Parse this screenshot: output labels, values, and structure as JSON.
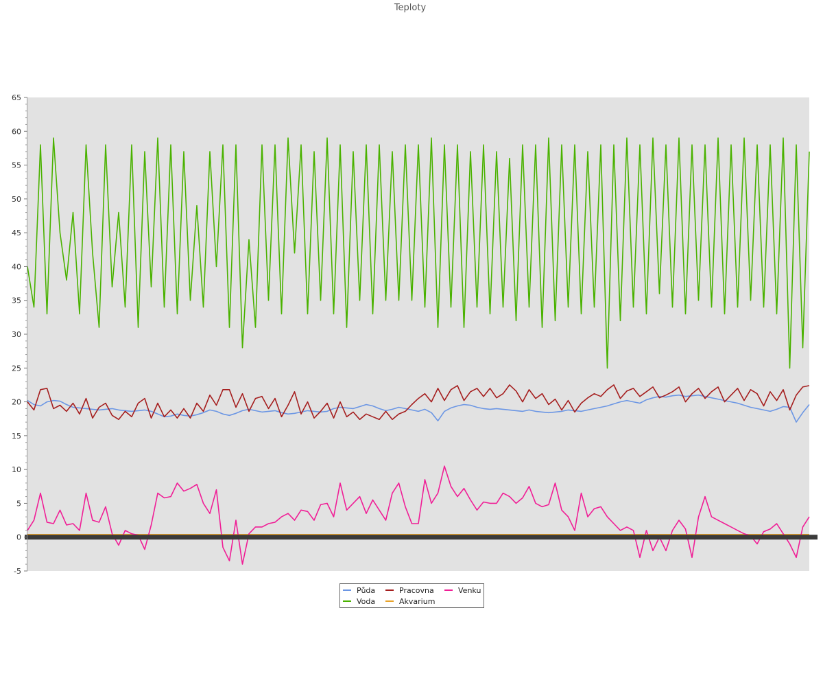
{
  "chart_data": {
    "type": "line",
    "title": "Teploty",
    "xlabel": "",
    "ylabel": "",
    "ylim": [
      -5,
      65
    ],
    "yticks": [
      "-5",
      "0",
      "5",
      "10",
      "15",
      "20",
      "25",
      "30",
      "35",
      "40",
      "45",
      "50",
      "55",
      "60",
      "65"
    ],
    "grid": false,
    "legend_position": "bottom-center",
    "plot_background": "#e2e2e2",
    "zero_line_color": "#3a3a3a",
    "x": [
      0,
      1,
      2,
      3,
      4,
      5,
      6,
      7,
      8,
      9,
      10,
      11,
      12,
      13,
      14,
      15,
      16,
      17,
      18,
      19,
      20,
      21,
      22,
      23,
      24,
      25,
      26,
      27,
      28,
      29,
      30,
      31,
      32,
      33,
      34,
      35,
      36,
      37,
      38,
      39,
      40,
      41,
      42,
      43,
      44,
      45,
      46,
      47,
      48,
      49,
      50,
      51,
      52,
      53,
      54,
      55,
      56,
      57,
      58,
      59,
      60,
      61,
      62,
      63,
      64,
      65,
      66,
      67,
      68,
      69,
      70,
      71,
      72,
      73,
      74,
      75,
      76,
      77,
      78,
      79,
      80,
      81,
      82,
      83,
      84,
      85,
      86,
      87,
      88,
      89,
      90,
      91,
      92,
      93,
      94,
      95,
      96,
      97,
      98,
      99,
      100,
      101,
      102,
      103,
      104,
      105,
      106,
      107,
      108,
      109,
      110,
      111,
      112,
      113,
      114,
      115,
      116,
      117,
      118,
      119,
      120
    ],
    "series": [
      {
        "name": "Půda",
        "color": "#6b96e4",
        "values": [
          20.2,
          19.6,
          19.4,
          20.0,
          20.2,
          20.1,
          19.6,
          19.2,
          19.1,
          19.0,
          18.9,
          18.8,
          18.9,
          19.0,
          18.8,
          18.7,
          18.6,
          18.7,
          18.8,
          18.6,
          18.2,
          17.8,
          17.9,
          18.2,
          18.0,
          17.9,
          18.1,
          18.4,
          18.8,
          18.6,
          18.2,
          18.0,
          18.3,
          18.7,
          18.9,
          18.7,
          18.5,
          18.6,
          18.7,
          18.4,
          18.2,
          18.3,
          18.5,
          18.7,
          18.6,
          18.5,
          18.6,
          19.0,
          19.2,
          19.1,
          19.0,
          19.3,
          19.6,
          19.4,
          19.0,
          18.7,
          18.9,
          19.2,
          19.0,
          18.8,
          18.6,
          18.9,
          18.4,
          17.2,
          18.6,
          19.1,
          19.4,
          19.6,
          19.5,
          19.2,
          19.0,
          18.9,
          19.0,
          18.9,
          18.8,
          18.7,
          18.6,
          18.8,
          18.6,
          18.5,
          18.4,
          18.5,
          18.6,
          18.8,
          18.7,
          18.6,
          18.8,
          19.0,
          19.2,
          19.4,
          19.7,
          20.0,
          20.2,
          20.0,
          19.8,
          20.3,
          20.6,
          20.8,
          20.7,
          20.9,
          21.0,
          20.8,
          20.9,
          21.0,
          20.8,
          20.6,
          20.4,
          20.2,
          20.0,
          19.8,
          19.5,
          19.2,
          19.0,
          18.8,
          18.6,
          18.9,
          19.3,
          19.2,
          17.0,
          18.4,
          19.6
        ]
      },
      {
        "name": "Voda",
        "color": "#4ab200",
        "values": [
          40,
          34,
          58,
          33,
          59,
          45,
          38,
          48,
          33,
          58,
          42,
          31,
          58,
          37,
          48,
          34,
          58,
          31,
          57,
          37,
          59,
          34,
          58,
          33,
          57,
          35,
          49,
          34,
          57,
          40,
          58,
          31,
          58,
          28,
          44,
          31,
          58,
          35,
          58,
          33,
          59,
          42,
          58,
          33,
          57,
          35,
          59,
          33,
          58,
          31,
          57,
          35,
          58,
          33,
          58,
          35,
          57,
          35,
          58,
          35,
          58,
          34,
          59,
          31,
          58,
          34,
          58,
          31,
          57,
          34,
          58,
          33,
          57,
          34,
          56,
          32,
          58,
          34,
          58,
          31,
          59,
          32,
          58,
          34,
          58,
          33,
          57,
          34,
          58,
          25,
          58,
          32,
          59,
          34,
          58,
          33,
          59,
          36,
          58,
          34,
          59,
          33,
          58,
          35,
          58,
          34,
          59,
          33,
          58,
          34,
          59,
          35,
          58,
          34,
          58,
          33,
          59,
          25,
          58,
          28,
          57
        ]
      },
      {
        "name": "Pracovna",
        "color": "#a51e1e",
        "values": [
          20.0,
          18.8,
          21.8,
          22.0,
          19.0,
          19.5,
          18.6,
          19.8,
          18.2,
          20.5,
          17.6,
          19.2,
          19.8,
          18.0,
          17.4,
          18.6,
          17.8,
          19.8,
          20.5,
          17.6,
          19.8,
          17.8,
          18.8,
          17.6,
          19.0,
          17.6,
          19.8,
          18.6,
          21.0,
          19.5,
          21.8,
          21.8,
          19.2,
          21.2,
          18.6,
          20.5,
          20.8,
          19.0,
          20.5,
          17.8,
          19.5,
          21.5,
          18.2,
          20.0,
          17.6,
          18.6,
          19.8,
          17.6,
          20.0,
          17.8,
          18.5,
          17.4,
          18.2,
          17.8,
          17.4,
          18.6,
          17.4,
          18.2,
          18.6,
          19.6,
          20.5,
          21.2,
          20.0,
          22.0,
          20.2,
          21.8,
          22.4,
          20.2,
          21.5,
          22.0,
          20.8,
          22.0,
          20.6,
          21.2,
          22.5,
          21.6,
          20.0,
          21.8,
          20.5,
          21.2,
          19.6,
          20.4,
          18.8,
          20.2,
          18.5,
          19.8,
          20.6,
          21.2,
          20.8,
          21.8,
          22.5,
          20.5,
          21.6,
          22.0,
          20.8,
          21.5,
          22.2,
          20.6,
          21.0,
          21.5,
          22.2,
          20.0,
          21.2,
          22.0,
          20.5,
          21.5,
          22.2,
          20.0,
          21.0,
          22.0,
          20.2,
          21.8,
          21.2,
          19.4,
          21.5,
          20.2,
          21.8,
          18.8,
          21.0,
          22.2,
          22.4
        ]
      },
      {
        "name": "Akvarium",
        "color": "#e8a32a",
        "values": [
          0.4,
          0.4,
          0.4,
          0.4,
          0.4,
          0.4,
          0.4,
          0.4,
          0.4,
          0.4,
          0.4,
          0.4,
          0.4,
          0.4,
          0.4,
          0.4,
          0.4,
          0.4,
          0.4,
          0.4,
          0.4,
          0.4,
          0.4,
          0.4,
          0.4,
          0.4,
          0.4,
          0.4,
          0.4,
          0.4,
          0.4,
          0.4,
          0.4,
          0.4,
          0.4,
          0.4,
          0.4,
          0.4,
          0.4,
          0.4,
          0.4,
          0.4,
          0.4,
          0.4,
          0.4,
          0.4,
          0.4,
          0.4,
          0.4,
          0.4,
          0.4,
          0.4,
          0.4,
          0.4,
          0.4,
          0.4,
          0.4,
          0.4,
          0.4,
          0.4,
          0.4,
          0.4,
          0.4,
          0.4,
          0.4,
          0.4,
          0.4,
          0.4,
          0.4,
          0.4,
          0.4,
          0.4,
          0.4,
          0.4,
          0.4,
          0.4,
          0.4,
          0.4,
          0.4,
          0.4,
          0.4,
          0.4,
          0.4,
          0.4,
          0.4,
          0.4,
          0.4,
          0.4,
          0.4,
          0.4,
          0.4,
          0.4,
          0.4,
          0.4,
          0.4,
          0.4,
          0.4,
          0.4,
          0.4,
          0.4,
          0.4,
          0.4,
          0.4,
          0.4,
          0.4,
          0.4,
          0.4,
          0.4,
          0.4,
          0.4,
          0.4,
          0.4,
          0.4,
          0.4,
          0.4,
          0.4,
          0.4,
          0.4,
          0.4,
          0.4,
          0.4
        ]
      },
      {
        "name": "Venku",
        "color": "#f01e96",
        "values": [
          1.0,
          2.5,
          6.5,
          2.2,
          2.0,
          4.0,
          1.8,
          2.0,
          1.0,
          6.5,
          2.5,
          2.2,
          4.5,
          0.5,
          -1.2,
          1.0,
          0.5,
          0.3,
          -1.8,
          1.8,
          6.5,
          5.8,
          6.0,
          8.0,
          6.8,
          7.2,
          7.8,
          5.0,
          3.5,
          7.0,
          -1.5,
          -3.5,
          2.5,
          -4.0,
          0.5,
          1.5,
          1.5,
          2.0,
          2.2,
          3.0,
          3.5,
          2.5,
          4.0,
          3.8,
          2.5,
          4.8,
          5.0,
          3.0,
          8.0,
          4.0,
          5.0,
          6.0,
          3.5,
          5.5,
          4.0,
          2.5,
          6.5,
          8.0,
          4.5,
          2.0,
          2.0,
          8.5,
          5.0,
          6.5,
          10.5,
          7.5,
          6.0,
          7.2,
          5.5,
          4.0,
          5.2,
          5.0,
          5.0,
          6.5,
          6.0,
          5.0,
          5.8,
          7.5,
          5.0,
          4.5,
          4.8,
          8.0,
          4.0,
          3.0,
          1.0,
          6.5,
          3.0,
          4.2,
          4.5,
          3.0,
          2.0,
          1.0,
          1.5,
          1.0,
          -3.0,
          1.0,
          -2.0,
          0.0,
          -2.0,
          1.0,
          2.5,
          1.2,
          -3.0,
          3.0,
          6.0,
          3.0,
          2.5,
          2.0,
          1.5,
          1.0,
          0.5,
          0.2,
          -1.0,
          0.8,
          1.2,
          2.0,
          0.5,
          -1.0,
          -3.0,
          1.5,
          3.0
        ]
      }
    ]
  }
}
